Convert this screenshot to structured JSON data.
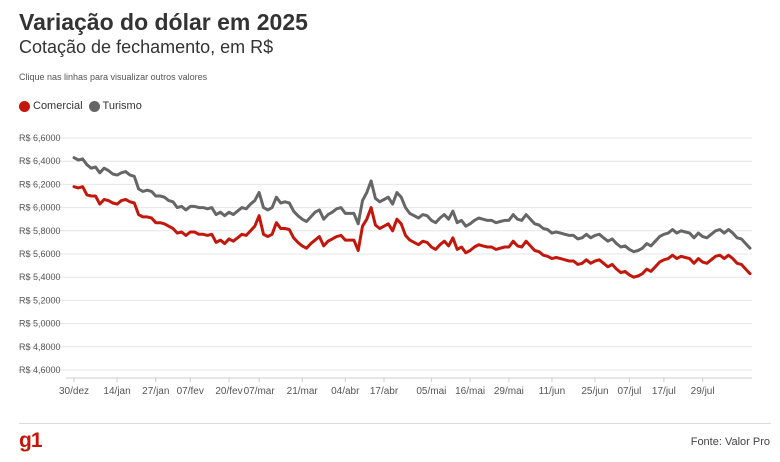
{
  "header": {
    "title": "Variação do dólar em 2025",
    "subtitle": "Cotação de fechamento, em R$",
    "hint": "Clique nas linhas para visualizar outros valores"
  },
  "footer": {
    "logo": "g1",
    "source": "Fonte: Valor Pro"
  },
  "colors": {
    "comercial": "#c4170c",
    "turismo": "#666666",
    "grid": "#e6e6e6",
    "logo": "#c4170c"
  },
  "chart_data": {
    "type": "line",
    "title": "Variação do dólar em 2025",
    "subtitle": "Cotação de fechamento, em R$",
    "xlabel": "",
    "ylabel": "",
    "ylim": [
      4.6,
      6.6
    ],
    "grid": true,
    "legend_position": "top-left",
    "y_ticks": [
      "R$ 6,6000",
      "R$ 6,4000",
      "R$ 6,2000",
      "R$ 6,0000",
      "R$ 5,8000",
      "R$ 5,6000",
      "R$ 5,4000",
      "R$ 5,2000",
      "R$ 5,0000",
      "R$ 4,8000",
      "R$ 4,6000"
    ],
    "y_tick_values": [
      6.6,
      6.4,
      6.2,
      6.0,
      5.8,
      5.6,
      5.4,
      5.2,
      5.0,
      4.8,
      4.6
    ],
    "x_ticks": [
      "30/dez",
      "14/jan",
      "27/jan",
      "07/fev",
      "20/fev",
      "07/mar",
      "21/mar",
      "04/abr",
      "17/abr",
      "05/mai",
      "16/mai",
      "29/mai",
      "11/jun",
      "25/jun",
      "07/jul",
      "17/jul",
      "29/jul"
    ],
    "x_tick_index": [
      0,
      10,
      19,
      27,
      36,
      43,
      53,
      63,
      72,
      83,
      92,
      101,
      111,
      121,
      129,
      137,
      146
    ],
    "series": [
      {
        "name": "Comercial",
        "values": [
          6.18,
          6.17,
          6.18,
          6.11,
          6.1,
          6.1,
          6.03,
          6.07,
          6.06,
          6.04,
          6.03,
          6.06,
          6.07,
          6.05,
          6.04,
          5.94,
          5.92,
          5.92,
          5.91,
          5.87,
          5.87,
          5.86,
          5.84,
          5.82,
          5.78,
          5.79,
          5.76,
          5.79,
          5.79,
          5.77,
          5.77,
          5.76,
          5.77,
          5.7,
          5.72,
          5.69,
          5.73,
          5.71,
          5.74,
          5.77,
          5.76,
          5.8,
          5.84,
          5.93,
          5.77,
          5.75,
          5.77,
          5.87,
          5.82,
          5.82,
          5.81,
          5.74,
          5.7,
          5.67,
          5.65,
          5.69,
          5.72,
          5.75,
          5.67,
          5.71,
          5.73,
          5.75,
          5.76,
          5.72,
          5.72,
          5.72,
          5.63,
          5.84,
          5.9,
          6.0,
          5.85,
          5.82,
          5.84,
          5.86,
          5.8,
          5.9,
          5.86,
          5.76,
          5.72,
          5.7,
          5.68,
          5.71,
          5.7,
          5.66,
          5.64,
          5.68,
          5.71,
          5.67,
          5.74,
          5.64,
          5.66,
          5.61,
          5.63,
          5.66,
          5.68,
          5.67,
          5.66,
          5.66,
          5.64,
          5.65,
          5.66,
          5.66,
          5.71,
          5.67,
          5.66,
          5.71,
          5.67,
          5.63,
          5.62,
          5.59,
          5.58,
          5.56,
          5.57,
          5.56,
          5.55,
          5.54,
          5.54,
          5.51,
          5.52,
          5.55,
          5.52,
          5.54,
          5.55,
          5.52,
          5.49,
          5.51,
          5.47,
          5.44,
          5.45,
          5.42,
          5.4,
          5.41,
          5.43,
          5.47,
          5.45,
          5.49,
          5.53,
          5.55,
          5.56,
          5.59,
          5.56,
          5.58,
          5.57,
          5.56,
          5.52,
          5.56,
          5.53,
          5.52,
          5.55,
          5.58,
          5.59,
          5.56,
          5.59,
          5.56,
          5.52,
          5.51,
          5.47,
          5.43
        ]
      },
      {
        "name": "Turismo",
        "values": [
          6.43,
          6.41,
          6.42,
          6.37,
          6.34,
          6.35,
          6.3,
          6.34,
          6.32,
          6.29,
          6.28,
          6.3,
          6.31,
          6.28,
          6.27,
          6.16,
          6.14,
          6.15,
          6.14,
          6.1,
          6.1,
          6.09,
          6.06,
          6.05,
          6.0,
          6.01,
          5.98,
          6.01,
          6.01,
          6.0,
          6.0,
          5.99,
          6.0,
          5.94,
          5.96,
          5.93,
          5.96,
          5.94,
          5.97,
          6.0,
          5.99,
          6.03,
          6.06,
          6.13,
          6.0,
          5.98,
          6.0,
          6.09,
          6.04,
          6.05,
          6.04,
          5.97,
          5.93,
          5.9,
          5.88,
          5.92,
          5.96,
          5.98,
          5.9,
          5.94,
          5.96,
          5.99,
          6.0,
          5.95,
          5.95,
          5.95,
          5.86,
          6.06,
          6.13,
          6.23,
          6.08,
          6.05,
          6.07,
          6.09,
          6.03,
          6.13,
          6.09,
          6.0,
          5.95,
          5.93,
          5.91,
          5.94,
          5.93,
          5.89,
          5.87,
          5.91,
          5.94,
          5.9,
          5.97,
          5.87,
          5.89,
          5.84,
          5.86,
          5.89,
          5.91,
          5.9,
          5.89,
          5.89,
          5.87,
          5.88,
          5.89,
          5.89,
          5.94,
          5.9,
          5.89,
          5.94,
          5.9,
          5.86,
          5.85,
          5.82,
          5.81,
          5.78,
          5.79,
          5.78,
          5.77,
          5.76,
          5.76,
          5.73,
          5.74,
          5.77,
          5.74,
          5.76,
          5.77,
          5.74,
          5.71,
          5.73,
          5.69,
          5.66,
          5.67,
          5.64,
          5.62,
          5.63,
          5.65,
          5.69,
          5.67,
          5.71,
          5.75,
          5.77,
          5.78,
          5.81,
          5.78,
          5.8,
          5.79,
          5.78,
          5.74,
          5.78,
          5.75,
          5.74,
          5.77,
          5.8,
          5.81,
          5.78,
          5.81,
          5.78,
          5.74,
          5.73,
          5.69,
          5.65
        ]
      }
    ]
  }
}
